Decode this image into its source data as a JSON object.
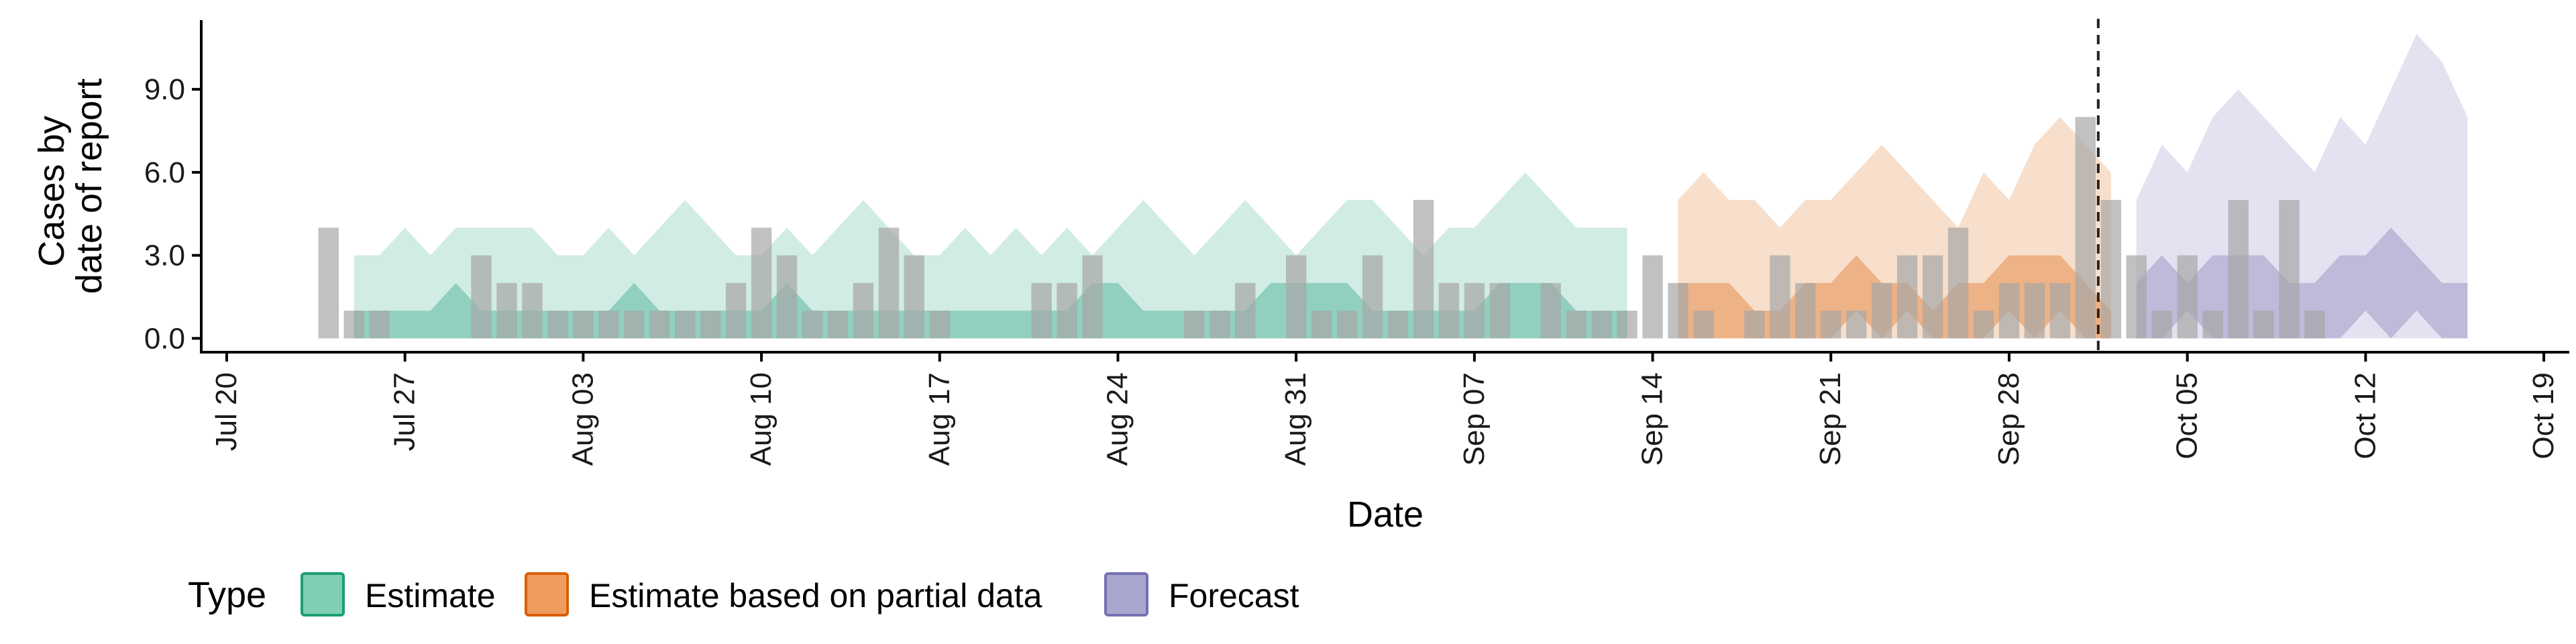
{
  "chart_data": {
    "type": "area",
    "xlabel": "Date",
    "ylabel": [
      "Cases by",
      "date of report"
    ],
    "x_ticks": [
      "Jul 20",
      "Jul 27",
      "Aug 03",
      "Aug 10",
      "Aug 17",
      "Aug 24",
      "Aug 31",
      "Sep 07",
      "Sep 14",
      "Sep 21",
      "Sep 28",
      "Oct 05",
      "Oct 12",
      "Oct 19"
    ],
    "y_ticks": [
      "0.0",
      "3.0",
      "6.0",
      "9.0"
    ],
    "y_tick_values": [
      0,
      3,
      6,
      9
    ],
    "ylim": [
      -0.5,
      11.5
    ],
    "xlim": [
      "2020-07-19",
      "2020-10-20"
    ],
    "forecast_date": "2020-10-01",
    "legend": {
      "title": "Type",
      "position": "bottom",
      "items": [
        {
          "label": "Estimate",
          "fill": "#7fcfb5",
          "stroke": "#1b9e77"
        },
        {
          "label": "Estimate based on partial data",
          "fill": "#ee9d5e",
          "stroke": "#d95f02"
        },
        {
          "label": "Forecast",
          "fill": "#a9a7cf",
          "stroke": "#7570b3"
        }
      ]
    },
    "reported_cases": {
      "color": "#a6a6a6",
      "start_date": "2020-07-24",
      "values": [
        4,
        1,
        1,
        0,
        0,
        0,
        3,
        2,
        2,
        1,
        1,
        1,
        1,
        1,
        1,
        1,
        2,
        4,
        3,
        1,
        1,
        2,
        4,
        3,
        1,
        0,
        0,
        0,
        2,
        2,
        3,
        0,
        0,
        0,
        1,
        1,
        2,
        0,
        3,
        1,
        1,
        3,
        1,
        5,
        2,
        2,
        2,
        0,
        2,
        1,
        1,
        1,
        3,
        2,
        1,
        0,
        1,
        3,
        2,
        1,
        1,
        2,
        3,
        3,
        4,
        1,
        2,
        2,
        2,
        8,
        5,
        3,
        1,
        3,
        1,
        5,
        1,
        5,
        1
      ]
    },
    "series": [
      {
        "name": "Estimate",
        "color": "#1b9e77",
        "start_date": "2020-07-25",
        "outer_upper": [
          3,
          3,
          4,
          3,
          4,
          4,
          4,
          4,
          3,
          3,
          4,
          3,
          4,
          5,
          4,
          3,
          3,
          4,
          3,
          4,
          5,
          4,
          3,
          3,
          4,
          3,
          4,
          3,
          4,
          3,
          4,
          5,
          4,
          3,
          4,
          5,
          4,
          3,
          4,
          5,
          5,
          4,
          3,
          4,
          4,
          5,
          6,
          5,
          4,
          4,
          4
        ],
        "outer_lower": [
          0,
          0,
          0,
          0,
          0,
          0,
          0,
          0,
          0,
          0,
          0,
          0,
          0,
          0,
          0,
          0,
          0,
          0,
          0,
          0,
          0,
          0,
          0,
          0,
          0,
          0,
          0,
          0,
          0,
          0,
          0,
          0,
          0,
          0,
          0,
          0,
          0,
          0,
          0,
          0,
          0,
          0,
          0,
          0,
          0,
          0,
          0,
          0,
          0,
          0,
          0
        ],
        "inner_upper": [
          1,
          1,
          1,
          1,
          2,
          1,
          1,
          1,
          1,
          1,
          1,
          2,
          1,
          1,
          1,
          1,
          1,
          2,
          1,
          1,
          1,
          1,
          1,
          1,
          1,
          1,
          1,
          1,
          1,
          2,
          2,
          1,
          1,
          1,
          1,
          1,
          2,
          2,
          2,
          2,
          1,
          1,
          1,
          1,
          1,
          2,
          2,
          2,
          1,
          1,
          1
        ],
        "inner_lower": [
          0,
          0,
          0,
          0,
          0,
          0,
          0,
          0,
          0,
          0,
          0,
          0,
          0,
          0,
          0,
          0,
          0,
          0,
          0,
          0,
          0,
          0,
          0,
          0,
          0,
          0,
          0,
          0,
          0,
          0,
          0,
          0,
          0,
          0,
          0,
          0,
          0,
          0,
          0,
          0,
          0,
          0,
          0,
          0,
          0,
          0,
          0,
          0,
          0,
          0,
          0
        ]
      },
      {
        "name": "Estimate based on partial data",
        "color": "#d95f02",
        "start_date": "2020-09-15",
        "outer_upper": [
          5,
          6,
          5,
          5,
          4,
          5,
          5,
          6,
          7,
          6,
          5,
          4,
          6,
          5,
          7,
          8,
          7,
          6
        ],
        "outer_lower": [
          0,
          0,
          0,
          0,
          0,
          0,
          0,
          0,
          0,
          0,
          0,
          0,
          0,
          0,
          0,
          0,
          0,
          0
        ],
        "inner_upper": [
          2,
          2,
          2,
          1,
          1,
          2,
          2,
          3,
          2,
          2,
          1,
          2,
          2,
          3,
          3,
          3,
          2,
          1
        ],
        "inner_lower": [
          0,
          0,
          0,
          0,
          0,
          0,
          0,
          1,
          0,
          1,
          0,
          0,
          0,
          1,
          0,
          1,
          0,
          0
        ]
      },
      {
        "name": "Forecast",
        "color": "#7570b3",
        "start_date": "2020-10-03",
        "outer_upper": [
          5,
          7,
          6,
          8,
          9,
          8,
          7,
          6,
          8,
          7,
          9,
          11,
          10,
          8
        ],
        "outer_lower": [
          0,
          0,
          0,
          0,
          0,
          0,
          0,
          0,
          0,
          0,
          0,
          0,
          0,
          0
        ],
        "inner_upper": [
          2,
          3,
          2,
          3,
          3,
          3,
          2,
          2,
          3,
          3,
          4,
          3,
          2,
          2
        ],
        "inner_lower": [
          0,
          0,
          1,
          0,
          0,
          0,
          0,
          0,
          0,
          1,
          0,
          1,
          0,
          0
        ]
      }
    ]
  }
}
